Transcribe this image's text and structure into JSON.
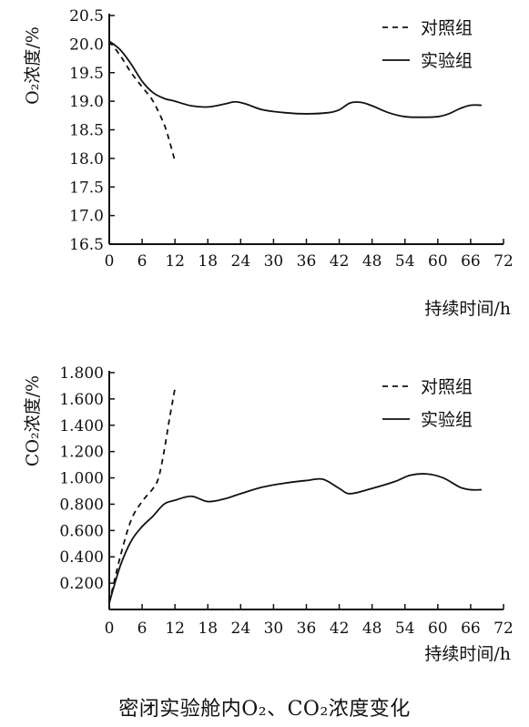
{
  "caption": "密闭实验舱内O₂、CO₂浓度变化",
  "chart_data": [
    {
      "type": "line",
      "id": "o2",
      "ylabel": "O₂浓度/%",
      "xlabel": "持续时间/h",
      "xlim": [
        0,
        72
      ],
      "ylim": [
        16.5,
        20.5
      ],
      "xticks": [
        "0",
        "6",
        "12",
        "18",
        "24",
        "30",
        "36",
        "42",
        "48",
        "54",
        "60",
        "66",
        "72"
      ],
      "yticks": [
        "16.5",
        "17.0",
        "17.5",
        "18.0",
        "18.5",
        "19.0",
        "19.5",
        "20.0",
        "20.5"
      ],
      "legend": {
        "position": "top-right"
      },
      "series": [
        {
          "name": "对照组",
          "style": "dashed",
          "x": [
            0,
            2,
            4,
            6,
            8,
            10,
            11,
            12
          ],
          "y": [
            20.05,
            19.8,
            19.5,
            19.25,
            19.0,
            18.6,
            18.3,
            17.95
          ]
        },
        {
          "name": "实验组",
          "style": "solid",
          "x": [
            0,
            2,
            4,
            6,
            8,
            10,
            12,
            15,
            18,
            21,
            23,
            25,
            28,
            32,
            36,
            40,
            42,
            44,
            46,
            48,
            51,
            54,
            57,
            60,
            62,
            64,
            66,
            68
          ],
          "y": [
            20.05,
            19.9,
            19.65,
            19.35,
            19.15,
            19.05,
            19.0,
            18.92,
            18.9,
            18.95,
            18.99,
            18.95,
            18.85,
            18.8,
            18.78,
            18.8,
            18.85,
            18.97,
            18.98,
            18.92,
            18.8,
            18.73,
            18.72,
            18.73,
            18.78,
            18.87,
            18.93,
            18.93
          ]
        }
      ]
    },
    {
      "type": "line",
      "id": "co2",
      "ylabel": "CO₂浓度/%",
      "xlabel": "持续时间/h",
      "xlim": [
        0,
        72
      ],
      "ylim": [
        0,
        1.8
      ],
      "xticks": [
        "0",
        "6",
        "12",
        "18",
        "24",
        "30",
        "36",
        "42",
        "48",
        "54",
        "60",
        "66",
        "72"
      ],
      "yticks": [
        "0.200",
        "0.400",
        "0.600",
        "0.800",
        "1.000",
        "1.200",
        "1.400",
        "1.600",
        "1.800"
      ],
      "legend": {
        "position": "top-right"
      },
      "series": [
        {
          "name": "对照组",
          "style": "dashed",
          "x": [
            0,
            2,
            4,
            6,
            8,
            9,
            10,
            11,
            12
          ],
          "y": [
            0.05,
            0.4,
            0.68,
            0.82,
            0.92,
            1.0,
            1.2,
            1.45,
            1.68
          ]
        },
        {
          "name": "实验组",
          "style": "solid",
          "x": [
            0,
            2,
            4,
            6,
            8,
            10,
            12,
            15,
            18,
            21,
            24,
            28,
            32,
            36,
            39,
            42,
            44,
            48,
            52,
            55,
            58,
            61,
            64,
            66,
            68
          ],
          "y": [
            0.05,
            0.33,
            0.52,
            0.63,
            0.71,
            0.8,
            0.83,
            0.86,
            0.82,
            0.84,
            0.88,
            0.93,
            0.96,
            0.98,
            0.99,
            0.92,
            0.88,
            0.92,
            0.97,
            1.02,
            1.03,
            1.0,
            0.93,
            0.91,
            0.91
          ]
        }
      ]
    }
  ]
}
